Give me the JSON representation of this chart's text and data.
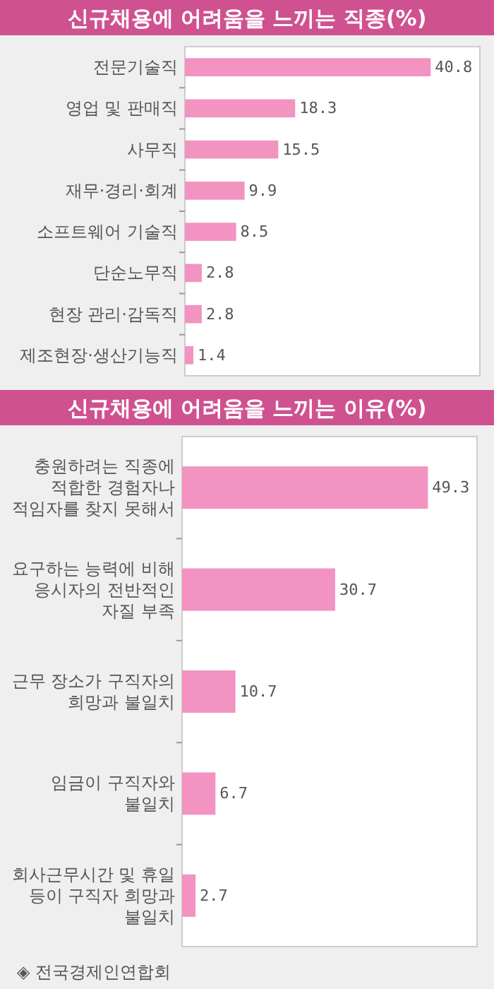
{
  "chart_data": [
    {
      "type": "bar",
      "orientation": "horizontal",
      "title": "신규채용에 어려움을 느끼는 직종(%)",
      "categories": [
        "전문기술직",
        "영업 및 판매직",
        "사무직",
        "재무·경리·회계",
        "소프트웨어 기술직",
        "단순노무직",
        "현장 관리·감독직",
        "제조현장·생산기능직"
      ],
      "values": [
        40.8,
        18.3,
        15.5,
        9.9,
        8.5,
        2.8,
        2.8,
        1.4
      ],
      "color": "#f293c1",
      "data_labels": true
    },
    {
      "type": "bar",
      "orientation": "horizontal",
      "title": "신규채용에 어려움을 느끼는 이유(%)",
      "categories": [
        "충원하려는 직종에 적합한 경험자나 적임자를 찾지 못해서",
        "요구하는 능력에 비해 응시자의 전반적인 자질 부족",
        "근무 장소가 구직자의 희망과 불일치",
        "임금이 구직자와 불일치",
        "회사근무시간 및 휴일 등이 구직자 희망과 불일치"
      ],
      "values": [
        49.3,
        30.7,
        10.7,
        6.7,
        2.7
      ],
      "color": "#f293c1",
      "data_labels": true,
      "annotations": [
        "◈ 전국경제인연합회"
      ]
    }
  ]
}
